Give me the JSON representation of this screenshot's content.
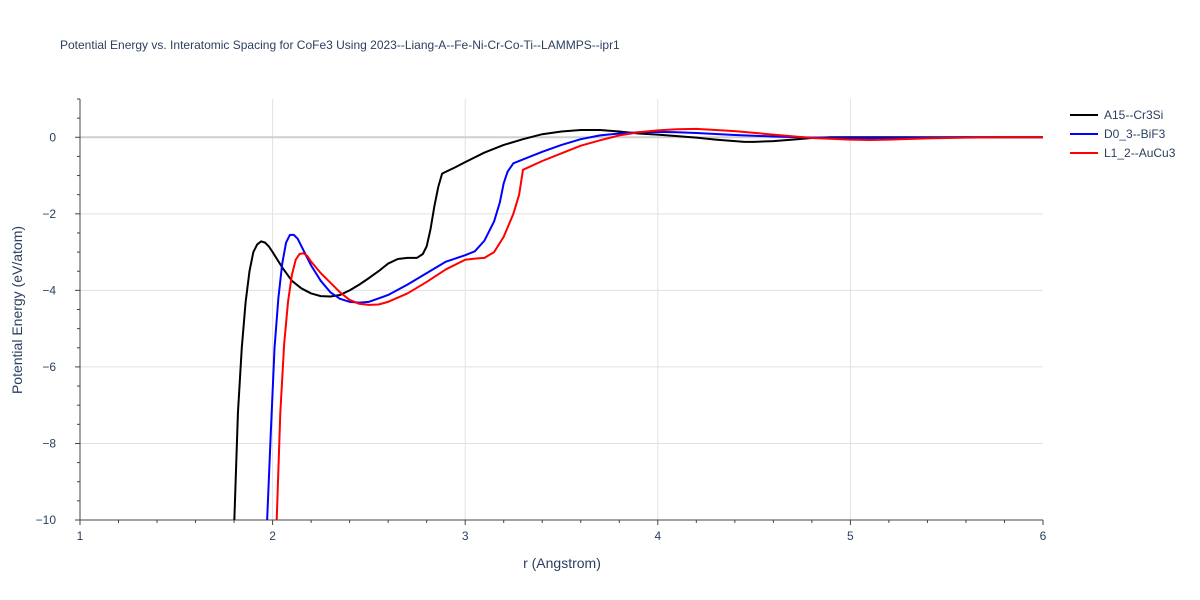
{
  "chart_data": {
    "type": "line",
    "title": "Potential Energy vs. Interatomic Spacing for CoFe3 Using 2023--Liang-A--Fe-Ni-Cr-Co-Ti--LAMMPS--ipr1",
    "xlabel": "r (Angstrom)",
    "ylabel": "Potential Energy (eV/atom)",
    "xlim": [
      1,
      6
    ],
    "ylim": [
      -10,
      1
    ],
    "xticks": [
      "1",
      "2",
      "3",
      "4",
      "5",
      "6"
    ],
    "yticks": [
      "−10",
      "−8",
      "−6",
      "−4",
      "−2",
      "0"
    ],
    "grid": true,
    "legend_position": "top-right",
    "series": [
      {
        "name": "A15--Cr3Si",
        "color": "#000000",
        "x": [
          1.8,
          1.82,
          1.84,
          1.86,
          1.88,
          1.9,
          1.92,
          1.94,
          1.96,
          1.98,
          2.0,
          2.05,
          2.1,
          2.15,
          2.2,
          2.25,
          2.3,
          2.35,
          2.4,
          2.45,
          2.5,
          2.55,
          2.6,
          2.65,
          2.7,
          2.75,
          2.78,
          2.8,
          2.82,
          2.84,
          2.86,
          2.88,
          2.9,
          2.95,
          3.0,
          3.1,
          3.2,
          3.3,
          3.4,
          3.5,
          3.6,
          3.7,
          3.8,
          3.9,
          4.0,
          4.1,
          4.2,
          4.3,
          4.4,
          4.45,
          4.5,
          4.6,
          4.7,
          4.8,
          4.9,
          5.0,
          5.2,
          5.4,
          5.6,
          5.8,
          6.0
        ],
        "y": [
          -10.2,
          -7.2,
          -5.5,
          -4.3,
          -3.5,
          -3.0,
          -2.8,
          -2.72,
          -2.75,
          -2.85,
          -3.0,
          -3.4,
          -3.75,
          -3.95,
          -4.08,
          -4.15,
          -4.16,
          -4.12,
          -4.0,
          -3.85,
          -3.68,
          -3.5,
          -3.3,
          -3.18,
          -3.15,
          -3.15,
          -3.05,
          -2.85,
          -2.4,
          -1.8,
          -1.3,
          -0.95,
          -0.9,
          -0.78,
          -0.65,
          -0.4,
          -0.2,
          -0.05,
          0.08,
          0.15,
          0.19,
          0.19,
          0.15,
          0.1,
          0.07,
          0.03,
          -0.01,
          -0.06,
          -0.1,
          -0.12,
          -0.12,
          -0.1,
          -0.06,
          -0.02,
          0.0,
          0.0,
          0.0,
          0.0,
          0.0,
          0.0,
          0.0
        ]
      },
      {
        "name": "D0_3--BiF3",
        "color": "#0000ff",
        "x": [
          1.97,
          1.99,
          2.01,
          2.03,
          2.05,
          2.07,
          2.09,
          2.11,
          2.13,
          2.15,
          2.2,
          2.25,
          2.3,
          2.35,
          2.4,
          2.45,
          2.5,
          2.6,
          2.7,
          2.8,
          2.9,
          3.0,
          3.05,
          3.1,
          3.15,
          3.18,
          3.2,
          3.22,
          3.25,
          3.3,
          3.4,
          3.5,
          3.6,
          3.7,
          3.8,
          3.9,
          4.0,
          4.1,
          4.2,
          4.4,
          4.6,
          4.8,
          5.0,
          5.2,
          5.4,
          5.6,
          5.8,
          6.0
        ],
        "y": [
          -10.2,
          -7.8,
          -5.5,
          -4.2,
          -3.3,
          -2.75,
          -2.55,
          -2.55,
          -2.65,
          -2.85,
          -3.35,
          -3.75,
          -4.05,
          -4.22,
          -4.3,
          -4.32,
          -4.3,
          -4.12,
          -3.85,
          -3.55,
          -3.25,
          -3.08,
          -2.98,
          -2.7,
          -2.2,
          -1.7,
          -1.2,
          -0.9,
          -0.68,
          -0.58,
          -0.38,
          -0.2,
          -0.05,
          0.05,
          0.1,
          0.13,
          0.14,
          0.13,
          0.11,
          0.06,
          0.02,
          -0.01,
          -0.02,
          -0.02,
          -0.01,
          0.0,
          0.0,
          0.0
        ]
      },
      {
        "name": "L1_2--AuCu3",
        "color": "#ff0000",
        "x": [
          2.02,
          2.04,
          2.06,
          2.08,
          2.1,
          2.12,
          2.14,
          2.16,
          2.18,
          2.2,
          2.25,
          2.3,
          2.35,
          2.4,
          2.45,
          2.5,
          2.55,
          2.6,
          2.7,
          2.8,
          2.9,
          3.0,
          3.05,
          3.1,
          3.15,
          3.2,
          3.25,
          3.28,
          3.3,
          3.4,
          3.5,
          3.6,
          3.7,
          3.8,
          3.9,
          4.0,
          4.1,
          4.2,
          4.4,
          4.6,
          4.8,
          5.0,
          5.1,
          5.2,
          5.4,
          5.6,
          5.8,
          6.0
        ],
        "y": [
          -10.2,
          -7.2,
          -5.4,
          -4.3,
          -3.6,
          -3.2,
          -3.05,
          -3.03,
          -3.1,
          -3.25,
          -3.55,
          -3.8,
          -4.05,
          -4.25,
          -4.35,
          -4.38,
          -4.37,
          -4.3,
          -4.08,
          -3.78,
          -3.45,
          -3.2,
          -3.17,
          -3.15,
          -3.0,
          -2.6,
          -2.0,
          -1.5,
          -0.85,
          -0.62,
          -0.42,
          -0.22,
          -0.08,
          0.05,
          0.13,
          0.18,
          0.21,
          0.22,
          0.16,
          0.07,
          -0.02,
          -0.06,
          -0.07,
          -0.06,
          -0.03,
          -0.01,
          0.0,
          0.0
        ]
      }
    ]
  }
}
